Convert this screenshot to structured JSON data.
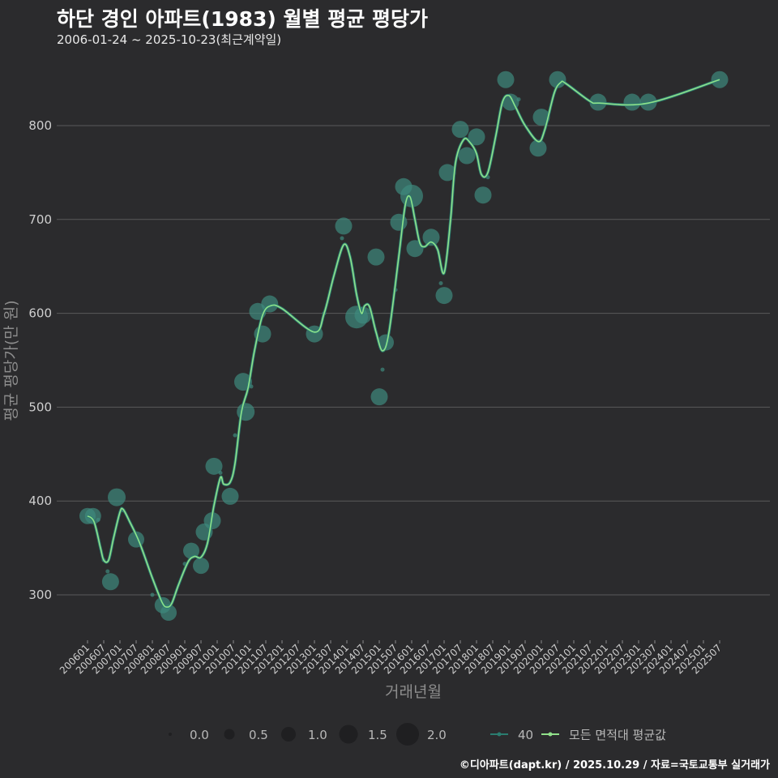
{
  "title": "하단 경인 아파트(1983) 월별 평균 평당가",
  "subtitle": "2006-01-24 ~ 2025-10-23(최근계약일)",
  "caption": "©디아파트(dapt.kr) / 2025.10.29 / 자료=국토교통부 실거래가",
  "colors": {
    "background": "#2b2b2d",
    "grid": "#5a5a5a",
    "point": "#3e8a7e",
    "series_line": "#2a7c6f",
    "avg_line": "#90e08a"
  },
  "chart_data": {
    "type": "scatter",
    "title": "하단 경인 아파트(1983) 월별 평균 평당가",
    "xlabel": "거래년월",
    "ylabel": "평균 평당가(만 원)",
    "ylim": [
      250,
      870
    ],
    "yticks": [
      300,
      400,
      500,
      600,
      700,
      800
    ],
    "xlim": [
      2005.75,
      2026.0
    ],
    "xtick_labels": [
      "200601",
      "200607",
      "200701",
      "200707",
      "200801",
      "200807",
      "200901",
      "200907",
      "201001",
      "201007",
      "201101",
      "201107",
      "201201",
      "201207",
      "201301",
      "201307",
      "201401",
      "201407",
      "201501",
      "201507",
      "201601",
      "201607",
      "201701",
      "201707",
      "201801",
      "201807",
      "201901",
      "201907",
      "202001",
      "202007",
      "202101",
      "202107",
      "202201",
      "202207",
      "202301",
      "202307",
      "202401",
      "202407",
      "202501",
      "202507"
    ],
    "size_legend": {
      "label_values": [
        "0.0",
        "0.5",
        "1.0",
        "1.5",
        "2.0"
      ],
      "values": [
        0.0,
        0.5,
        1.0,
        1.5,
        2.0
      ]
    },
    "series_legend": [
      {
        "name": "40",
        "color": "#2a7c6f"
      },
      {
        "name": "모든 면적대 평균값",
        "color": "#90e08a"
      }
    ],
    "points": [
      {
        "x": 2006.0,
        "y": 384,
        "s": 1.2
      },
      {
        "x": 2006.17,
        "y": 384,
        "s": 1.2
      },
      {
        "x": 2006.33,
        "y": 380,
        "s": 0.3
      },
      {
        "x": 2006.5,
        "y": 337,
        "s": 0.3
      },
      {
        "x": 2006.62,
        "y": 325,
        "s": 0.4
      },
      {
        "x": 2006.71,
        "y": 314,
        "s": 1.3
      },
      {
        "x": 2006.9,
        "y": 404,
        "s": 1.4
      },
      {
        "x": 2007.1,
        "y": 390,
        "s": 0.3
      },
      {
        "x": 2007.5,
        "y": 359,
        "s": 1.2
      },
      {
        "x": 2008.0,
        "y": 300,
        "s": 0.3
      },
      {
        "x": 2008.32,
        "y": 289,
        "s": 1.2
      },
      {
        "x": 2008.5,
        "y": 281,
        "s": 1.2
      },
      {
        "x": 2009.0,
        "y": 333,
        "s": 0.3
      },
      {
        "x": 2009.2,
        "y": 347,
        "s": 1.2
      },
      {
        "x": 2009.5,
        "y": 331,
        "s": 1.2
      },
      {
        "x": 2009.6,
        "y": 367,
        "s": 1.3
      },
      {
        "x": 2009.85,
        "y": 379,
        "s": 1.3
      },
      {
        "x": 2009.9,
        "y": 437,
        "s": 1.3
      },
      {
        "x": 2010.1,
        "y": 430,
        "s": 0.3
      },
      {
        "x": 2010.4,
        "y": 405,
        "s": 1.3
      },
      {
        "x": 2010.55,
        "y": 470,
        "s": 0.3
      },
      {
        "x": 2010.8,
        "y": 527,
        "s": 1.4
      },
      {
        "x": 2010.88,
        "y": 495,
        "s": 1.4
      },
      {
        "x": 2011.05,
        "y": 522,
        "s": 0.3
      },
      {
        "x": 2011.25,
        "y": 602,
        "s": 1.3
      },
      {
        "x": 2011.4,
        "y": 578,
        "s": 1.3
      },
      {
        "x": 2011.62,
        "y": 610,
        "s": 1.3
      },
      {
        "x": 2013.0,
        "y": 578,
        "s": 1.3
      },
      {
        "x": 2013.3,
        "y": 600,
        "s": 0.3
      },
      {
        "x": 2013.85,
        "y": 680,
        "s": 0.3
      },
      {
        "x": 2013.9,
        "y": 693,
        "s": 1.3
      },
      {
        "x": 2014.3,
        "y": 596,
        "s": 2.0
      },
      {
        "x": 2014.5,
        "y": 598,
        "s": 1.3
      },
      {
        "x": 2014.9,
        "y": 660,
        "s": 1.3
      },
      {
        "x": 2015.0,
        "y": 511,
        "s": 1.3
      },
      {
        "x": 2015.1,
        "y": 540,
        "s": 0.3
      },
      {
        "x": 2015.2,
        "y": 569,
        "s": 1.2
      },
      {
        "x": 2015.5,
        "y": 625,
        "s": 0.3
      },
      {
        "x": 2015.6,
        "y": 697,
        "s": 1.3
      },
      {
        "x": 2015.75,
        "y": 735,
        "s": 1.3
      },
      {
        "x": 2016.0,
        "y": 725,
        "s": 2.0
      },
      {
        "x": 2016.1,
        "y": 669,
        "s": 1.3
      },
      {
        "x": 2016.6,
        "y": 681,
        "s": 1.3
      },
      {
        "x": 2016.9,
        "y": 632,
        "s": 0.3
      },
      {
        "x": 2017.0,
        "y": 619,
        "s": 1.3
      },
      {
        "x": 2017.1,
        "y": 750,
        "s": 1.3
      },
      {
        "x": 2017.5,
        "y": 796,
        "s": 1.3
      },
      {
        "x": 2017.7,
        "y": 768,
        "s": 1.3
      },
      {
        "x": 2018.0,
        "y": 788,
        "s": 1.3
      },
      {
        "x": 2018.2,
        "y": 726,
        "s": 1.3
      },
      {
        "x": 2018.35,
        "y": 745,
        "s": 0.3
      },
      {
        "x": 2018.9,
        "y": 849,
        "s": 1.3
      },
      {
        "x": 2019.05,
        "y": 825,
        "s": 1.3
      },
      {
        "x": 2019.3,
        "y": 828,
        "s": 0.3
      },
      {
        "x": 2019.9,
        "y": 776,
        "s": 1.3
      },
      {
        "x": 2020.0,
        "y": 809,
        "s": 1.3
      },
      {
        "x": 2020.5,
        "y": 849,
        "s": 1.3
      },
      {
        "x": 2021.75,
        "y": 825,
        "s": 1.3
      },
      {
        "x": 2022.8,
        "y": 825,
        "s": 1.3
      },
      {
        "x": 2023.3,
        "y": 825,
        "s": 1.3
      },
      {
        "x": 2025.5,
        "y": 849,
        "s": 1.3
      }
    ],
    "avg_line": [
      [
        2006.0,
        384
      ],
      [
        2006.2,
        378
      ],
      [
        2006.4,
        350
      ],
      [
        2006.5,
        337
      ],
      [
        2006.65,
        337
      ],
      [
        2006.8,
        360
      ],
      [
        2007.0,
        388
      ],
      [
        2007.1,
        391
      ],
      [
        2007.3,
        378
      ],
      [
        2007.6,
        356
      ],
      [
        2008.0,
        318
      ],
      [
        2008.3,
        292
      ],
      [
        2008.45,
        287
      ],
      [
        2008.6,
        291
      ],
      [
        2008.8,
        310
      ],
      [
        2009.1,
        335
      ],
      [
        2009.3,
        341
      ],
      [
        2009.5,
        340
      ],
      [
        2009.7,
        355
      ],
      [
        2009.9,
        395
      ],
      [
        2010.1,
        425
      ],
      [
        2010.2,
        418
      ],
      [
        2010.4,
        420
      ],
      [
        2010.55,
        440
      ],
      [
        2010.75,
        495
      ],
      [
        2010.95,
        520
      ],
      [
        2011.15,
        560
      ],
      [
        2011.4,
        598
      ],
      [
        2011.65,
        608
      ],
      [
        2012.0,
        605
      ],
      [
        2013.0,
        580
      ],
      [
        2013.3,
        600
      ],
      [
        2013.6,
        640
      ],
      [
        2013.9,
        673
      ],
      [
        2014.1,
        660
      ],
      [
        2014.3,
        620
      ],
      [
        2014.45,
        600
      ],
      [
        2014.55,
        608
      ],
      [
        2014.7,
        607
      ],
      [
        2014.9,
        580
      ],
      [
        2015.1,
        560
      ],
      [
        2015.3,
        580
      ],
      [
        2015.6,
        660
      ],
      [
        2015.8,
        715
      ],
      [
        2015.95,
        724
      ],
      [
        2016.1,
        700
      ],
      [
        2016.25,
        675
      ],
      [
        2016.4,
        671
      ],
      [
        2016.6,
        676
      ],
      [
        2016.8,
        668
      ],
      [
        2017.0,
        643
      ],
      [
        2017.2,
        700
      ],
      [
        2017.35,
        760
      ],
      [
        2017.6,
        785
      ],
      [
        2017.8,
        782
      ],
      [
        2018.0,
        770
      ],
      [
        2018.15,
        748
      ],
      [
        2018.35,
        750
      ],
      [
        2018.6,
        790
      ],
      [
        2018.8,
        825
      ],
      [
        2019.0,
        832
      ],
      [
        2019.2,
        820
      ],
      [
        2019.5,
        800
      ],
      [
        2019.9,
        783
      ],
      [
        2020.1,
        795
      ],
      [
        2020.4,
        835
      ],
      [
        2020.6,
        846
      ],
      [
        2020.75,
        845
      ],
      [
        2021.5,
        826
      ],
      [
        2021.8,
        824
      ],
      [
        2023.3,
        824
      ],
      [
        2025.5,
        849
      ]
    ]
  }
}
